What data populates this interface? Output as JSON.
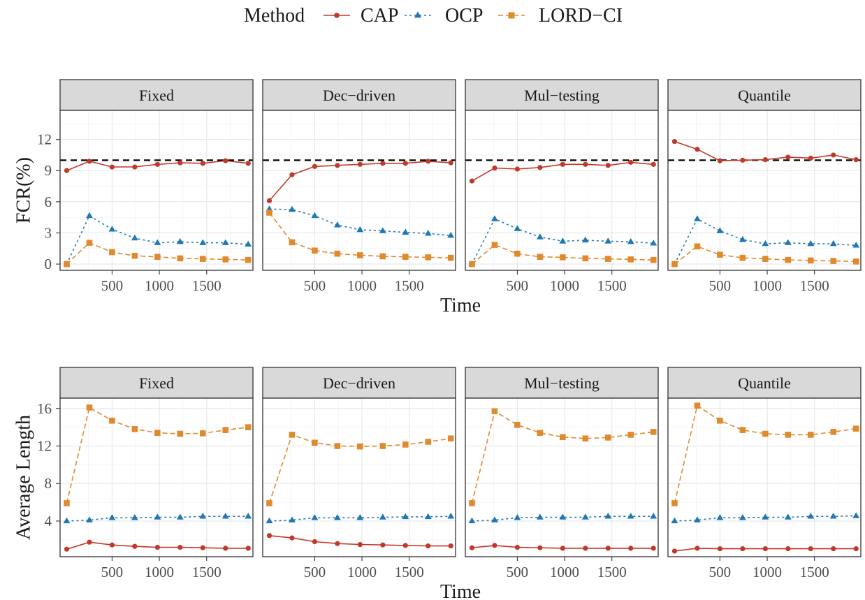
{
  "legend": {
    "title": "Method",
    "placement": "top",
    "items": [
      {
        "label": "CAP",
        "color": "#c0392b",
        "marker": "circle",
        "dash": "solid"
      },
      {
        "label": "OCP",
        "color": "#1f77b4",
        "marker": "triangle",
        "dash": "dotted"
      },
      {
        "label": "LORD−CI",
        "color": "#e08a2e",
        "marker": "square",
        "dash": "dashed"
      }
    ]
  },
  "chart_data": [
    {
      "type": "line",
      "ylabel": "FCR(%)",
      "xlabel": "Time",
      "ylim": [
        -0.6,
        14.8
      ],
      "yticks": [
        0,
        3,
        6,
        9,
        12
      ],
      "ytick_labels": [
        "0",
        "3",
        "6",
        "9",
        "12"
      ],
      "xlim": [
        -50,
        1990
      ],
      "xticks": [
        500,
        1000,
        1500
      ],
      "xtick_labels": [
        "500",
        "1000",
        "1500"
      ],
      "reference_line": 10,
      "x": [
        20,
        260,
        500,
        740,
        980,
        1220,
        1460,
        1700,
        1940
      ],
      "panels": [
        {
          "strip": "Fixed",
          "series": [
            {
              "name": "CAP",
              "values": [
                9.0,
                9.9,
                9.35,
                9.35,
                9.6,
                9.75,
                9.7,
                9.95,
                9.7
              ]
            },
            {
              "name": "OCP",
              "values": [
                0.0,
                4.65,
                3.35,
                2.5,
                2.05,
                2.15,
                2.05,
                2.05,
                1.9
              ]
            },
            {
              "name": "LORD−CI",
              "values": [
                0.0,
                2.05,
                1.15,
                0.8,
                0.7,
                0.55,
                0.5,
                0.45,
                0.4
              ]
            }
          ]
        },
        {
          "strip": "Dec−driven",
          "series": [
            {
              "name": "CAP",
              "values": [
                6.1,
                8.6,
                9.4,
                9.5,
                9.6,
                9.7,
                9.7,
                9.9,
                9.75
              ]
            },
            {
              "name": "OCP",
              "values": [
                5.3,
                5.25,
                4.65,
                3.75,
                3.3,
                3.2,
                3.05,
                2.95,
                2.75
              ]
            },
            {
              "name": "LORD−CI",
              "values": [
                4.95,
                2.1,
                1.3,
                1.0,
                0.85,
                0.75,
                0.7,
                0.65,
                0.6
              ]
            }
          ]
        },
        {
          "strip": "Mul−testing",
          "series": [
            {
              "name": "CAP",
              "values": [
                8.0,
                9.25,
                9.15,
                9.3,
                9.6,
                9.6,
                9.5,
                9.8,
                9.6
              ]
            },
            {
              "name": "OCP",
              "values": [
                0.0,
                4.35,
                3.4,
                2.6,
                2.2,
                2.3,
                2.2,
                2.15,
                2.0
              ]
            },
            {
              "name": "LORD−CI",
              "values": [
                0.0,
                1.85,
                1.0,
                0.7,
                0.65,
                0.55,
                0.5,
                0.45,
                0.4
              ]
            }
          ]
        },
        {
          "strip": "Quantile",
          "series": [
            {
              "name": "CAP",
              "values": [
                11.8,
                11.05,
                9.95,
                10.0,
                10.05,
                10.3,
                10.2,
                10.5,
                10.05
              ]
            },
            {
              "name": "OCP",
              "values": [
                0.0,
                4.35,
                3.2,
                2.35,
                1.95,
                2.05,
                1.95,
                1.95,
                1.8
              ]
            },
            {
              "name": "LORD−CI",
              "values": [
                0.0,
                1.7,
                0.9,
                0.6,
                0.5,
                0.4,
                0.35,
                0.3,
                0.25
              ]
            }
          ]
        }
      ]
    },
    {
      "type": "line",
      "ylabel": "Average Length",
      "xlabel": "Time",
      "ylim": [
        0.2,
        17.1
      ],
      "yticks": [
        4,
        8,
        12,
        16
      ],
      "ytick_labels": [
        "4",
        "8",
        "12",
        "16"
      ],
      "xlim": [
        -50,
        1990
      ],
      "xticks": [
        500,
        1000,
        1500
      ],
      "xtick_labels": [
        "500",
        "1000",
        "1500"
      ],
      "x": [
        20,
        260,
        500,
        740,
        980,
        1220,
        1460,
        1700,
        1940
      ],
      "panels": [
        {
          "strip": "Fixed",
          "series": [
            {
              "name": "CAP",
              "values": [
                1.0,
                1.75,
                1.45,
                1.3,
                1.2,
                1.2,
                1.15,
                1.1,
                1.1
              ]
            },
            {
              "name": "OCP",
              "values": [
                4.0,
                4.1,
                4.35,
                4.35,
                4.4,
                4.4,
                4.5,
                4.5,
                4.5
              ]
            },
            {
              "name": "LORD−CI",
              "values": [
                5.9,
                16.1,
                14.7,
                13.8,
                13.4,
                13.3,
                13.35,
                13.7,
                14.0
              ]
            }
          ]
        },
        {
          "strip": "Dec−driven",
          "series": [
            {
              "name": "CAP",
              "values": [
                2.45,
                2.2,
                1.8,
                1.6,
                1.5,
                1.45,
                1.4,
                1.35,
                1.35
              ]
            },
            {
              "name": "OCP",
              "values": [
                4.0,
                4.1,
                4.35,
                4.35,
                4.35,
                4.4,
                4.45,
                4.45,
                4.5
              ]
            },
            {
              "name": "LORD−CI",
              "values": [
                5.9,
                13.2,
                12.35,
                12.0,
                11.95,
                12.0,
                12.15,
                12.45,
                12.8
              ]
            }
          ]
        },
        {
          "strip": "Mul−testing",
          "series": [
            {
              "name": "CAP",
              "values": [
                1.15,
                1.4,
                1.2,
                1.15,
                1.1,
                1.1,
                1.1,
                1.1,
                1.1
              ]
            },
            {
              "name": "OCP",
              "values": [
                4.0,
                4.1,
                4.35,
                4.4,
                4.4,
                4.4,
                4.5,
                4.5,
                4.5
              ]
            },
            {
              "name": "LORD−CI",
              "values": [
                5.9,
                15.7,
                14.25,
                13.4,
                12.95,
                12.8,
                12.9,
                13.2,
                13.5
              ]
            }
          ]
        },
        {
          "strip": "Quantile",
          "series": [
            {
              "name": "CAP",
              "values": [
                0.8,
                1.1,
                1.05,
                1.05,
                1.05,
                1.05,
                1.05,
                1.05,
                1.05
              ]
            },
            {
              "name": "OCP",
              "values": [
                4.0,
                4.1,
                4.35,
                4.35,
                4.4,
                4.4,
                4.5,
                4.5,
                4.55
              ]
            },
            {
              "name": "LORD−CI",
              "values": [
                5.9,
                16.3,
                14.7,
                13.7,
                13.3,
                13.2,
                13.2,
                13.5,
                13.85
              ]
            }
          ]
        }
      ]
    }
  ]
}
